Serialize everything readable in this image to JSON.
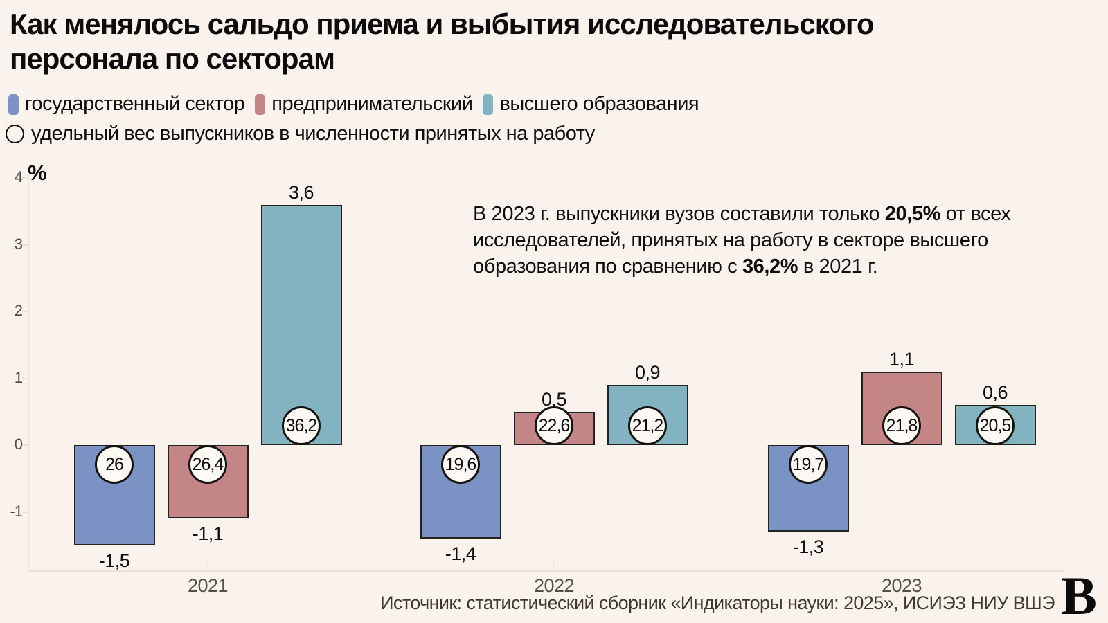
{
  "title": {
    "line1": "Как менялось сальдо приема и выбытия исследовательского",
    "line2": "персонала по секторам"
  },
  "legend": {
    "items": [
      {
        "key": "government",
        "label": "государственный сектор",
        "color": "#7b93c4"
      },
      {
        "key": "business",
        "label": "предпринимательский",
        "color": "#c48587"
      },
      {
        "key": "higher-education",
        "label": "высшего образования",
        "color": "#83b2c0"
      }
    ],
    "circle_label": "удельный вес выпускников в численности принятых на работу"
  },
  "chart_data": {
    "type": "bar",
    "title": "Как менялось сальдо приема и выбытия исследовательского персонала по секторам",
    "ylabel": "%",
    "yticks": [
      "4",
      "3",
      "2",
      "1",
      "0",
      "-1"
    ],
    "ytick_values": [
      4,
      3,
      2,
      1,
      0,
      -1
    ],
    "ylim": [
      -1.9,
      4.1
    ],
    "grid": false,
    "legend_position": "top",
    "categories": [
      "2021",
      "2022",
      "2023"
    ],
    "series": [
      {
        "name": "государственный сектор",
        "key": "government",
        "color": "#7b93c4",
        "values": [
          -1.5,
          -1.4,
          -1.3
        ],
        "value_labels": [
          "-1,5",
          "-1,4",
          "-1,3"
        ],
        "circle_values": [
          26,
          19.6,
          19.7
        ],
        "circle_labels": [
          "26",
          "19,6",
          "19,7"
        ]
      },
      {
        "name": "предпринимательский",
        "key": "business",
        "color": "#c48587",
        "values": [
          -1.1,
          0.5,
          1.1
        ],
        "value_labels": [
          "-1,1",
          "0,5",
          "1,1"
        ],
        "circle_values": [
          26.4,
          22.6,
          21.8
        ],
        "circle_labels": [
          "26,4",
          "22,6",
          "21,8"
        ]
      },
      {
        "name": "высшего образования",
        "key": "higher-education",
        "color": "#83b2c0",
        "values": [
          3.6,
          0.9,
          0.6
        ],
        "value_labels": [
          "3,6",
          "0,9",
          "0,6"
        ],
        "circle_values": [
          36.2,
          21.2,
          20.5
        ],
        "circle_labels": [
          "36,2",
          "21,2",
          "20,5"
        ]
      }
    ],
    "circle_marker_meaning": "удельный вес выпускников в численности принятых на работу"
  },
  "annotation": {
    "segments": [
      {
        "text": "В 2023 г. выпускники вузов составили только ",
        "bold": false
      },
      {
        "text": "20,5%",
        "bold": true
      },
      {
        "text": " от всех исследователей, принятых на работу в секторе высшего образования по сравнению с ",
        "bold": false
      },
      {
        "text": "36,2%",
        "bold": true
      },
      {
        "text": " в 2021 г.",
        "bold": false
      }
    ]
  },
  "footer": {
    "source": "Источник: статистический сборник «Индикаторы науки: 2025», ИСИЭЗ НИУ ВШЭ",
    "logo_letter": "В"
  },
  "colors": {
    "background": "#faf2ec",
    "bar_border": "#23221f",
    "axis_line": "#e7e1da",
    "tick_label": "#55504b",
    "circle_fill": "#fdfaf5",
    "text": "#0e0e0e"
  }
}
